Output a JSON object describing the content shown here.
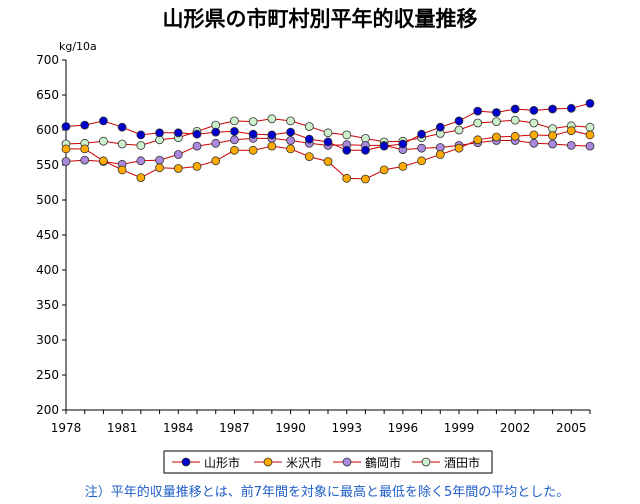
{
  "chart_data": {
    "type": "line",
    "title": "山形県の市町村別平年的収量推移",
    "ylabel": "kg/10a",
    "xlabel": "",
    "ylim": [
      200,
      700
    ],
    "yticks": [
      200,
      250,
      300,
      350,
      400,
      450,
      500,
      550,
      600,
      650,
      700
    ],
    "xrange": [
      1978,
      2006
    ],
    "xticks": [
      "1978",
      "1981",
      "1984",
      "1987",
      "1990",
      "1993",
      "1996",
      "1999",
      "2002",
      "2005"
    ],
    "grid": false,
    "legend_position": "bottom",
    "x": [
      1978,
      1979,
      1980,
      1981,
      1982,
      1983,
      1984,
      1985,
      1986,
      1987,
      1988,
      1989,
      1990,
      1991,
      1992,
      1993,
      1994,
      1995,
      1996,
      1997,
      1998,
      1999,
      2000,
      2001,
      2002,
      2003,
      2004,
      2005,
      2006
    ],
    "series": [
      {
        "name": "山形市",
        "color": "#0000cc",
        "values": [
          605,
          607,
          613,
          604,
          593,
          596,
          596,
          594,
          597,
          598,
          594,
          593,
          597,
          587,
          583,
          571,
          571,
          577,
          580,
          594,
          604,
          613,
          627,
          625,
          630,
          628,
          630,
          631,
          638
        ]
      },
      {
        "name": "米沢市",
        "color": "#ffaa00",
        "values": [
          573,
          573,
          556,
          543,
          532,
          546,
          545,
          548,
          556,
          571,
          571,
          577,
          573,
          562,
          555,
          531,
          530,
          543,
          548,
          556,
          565,
          574,
          586,
          590,
          591,
          593,
          592,
          599,
          593
        ]
      },
      {
        "name": "鶴岡市",
        "color": "#aa88dd",
        "values": [
          555,
          557,
          555,
          551,
          556,
          557,
          565,
          577,
          581,
          586,
          588,
          588,
          585,
          581,
          578,
          579,
          578,
          578,
          572,
          574,
          575,
          578,
          582,
          585,
          585,
          581,
          580,
          578,
          577
        ]
      },
      {
        "name": "酒田市",
        "color": "#ccf0cc",
        "values": [
          580,
          581,
          584,
          580,
          578,
          586,
          589,
          598,
          607,
          613,
          612,
          616,
          613,
          605,
          596,
          593,
          588,
          583,
          584,
          589,
          595,
          600,
          610,
          612,
          614,
          610,
          602,
          606,
          604
        ]
      }
    ]
  },
  "note": "注）平年的収量推移とは、前7年間を対象に最高と最低を除く5年間の平均とした。"
}
